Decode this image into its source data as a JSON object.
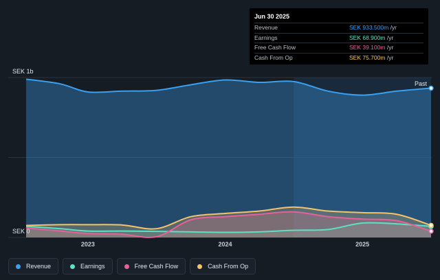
{
  "tooltip": {
    "title": "Jun 30 2025",
    "rows": [
      {
        "label": "Revenue",
        "value": "SEK 933.500m",
        "unit": "/yr",
        "color": "#3ba0ef"
      },
      {
        "label": "Earnings",
        "value": "SEK 68.900m",
        "unit": "/yr",
        "color": "#5fe0c4"
      },
      {
        "label": "Free Cash Flow",
        "value": "SEK 39.100m",
        "unit": "/yr",
        "color": "#e8609a"
      },
      {
        "label": "Cash From Op",
        "value": "SEK 75.700m",
        "unit": "/yr",
        "color": "#f5c36b"
      }
    ]
  },
  "legend": [
    {
      "label": "Revenue",
      "color": "#3ba0ef"
    },
    {
      "label": "Earnings",
      "color": "#5fe0c4"
    },
    {
      "label": "Free Cash Flow",
      "color": "#e8609a"
    },
    {
      "label": "Cash From Op",
      "color": "#f5c36b"
    }
  ],
  "chart_data": {
    "type": "area",
    "y_top_label": "SEK 1b",
    "y_bottom_label": "SEK 0",
    "past_label": "Past",
    "ylim": [
      0,
      1000
    ],
    "xlim": [
      2022.55,
      2025.5
    ],
    "highlight_start": 2024.5,
    "x_ticks": [
      2023,
      2024,
      2025
    ],
    "x_tick_labels": [
      "2023",
      "2024",
      "2025"
    ],
    "series": [
      {
        "name": "Revenue",
        "color": "#3ba0ef",
        "x": [
          2022.55,
          2022.8,
          2023.0,
          2023.25,
          2023.5,
          2023.75,
          2024.0,
          2024.25,
          2024.5,
          2024.75,
          2025.0,
          2025.25,
          2025.5
        ],
        "y": [
          990,
          960,
          910,
          915,
          920,
          955,
          985,
          970,
          975,
          915,
          890,
          915,
          933.5
        ]
      },
      {
        "name": "Earnings",
        "color": "#5fe0c4",
        "x": [
          2022.55,
          2022.8,
          2023.0,
          2023.25,
          2023.5,
          2023.75,
          2024.0,
          2024.25,
          2024.5,
          2024.75,
          2025.0,
          2025.25,
          2025.5
        ],
        "y": [
          70,
          55,
          40,
          40,
          38,
          35,
          32,
          35,
          45,
          50,
          90,
          85,
          68.9
        ]
      },
      {
        "name": "Free Cash Flow",
        "color": "#e8609a",
        "x": [
          2022.55,
          2022.8,
          2023.0,
          2023.25,
          2023.5,
          2023.75,
          2024.0,
          2024.25,
          2024.5,
          2024.75,
          2025.0,
          2025.25,
          2025.5
        ],
        "y": [
          60,
          40,
          25,
          20,
          5,
          110,
          130,
          145,
          160,
          130,
          115,
          105,
          39.1
        ]
      },
      {
        "name": "Cash From Op",
        "color": "#f5c36b",
        "x": [
          2022.55,
          2022.8,
          2023.0,
          2023.25,
          2023.5,
          2023.75,
          2024.0,
          2024.25,
          2024.5,
          2024.75,
          2025.0,
          2025.25,
          2025.5
        ],
        "y": [
          75,
          80,
          80,
          78,
          55,
          130,
          150,
          165,
          190,
          165,
          155,
          145,
          75.7
        ]
      }
    ]
  }
}
